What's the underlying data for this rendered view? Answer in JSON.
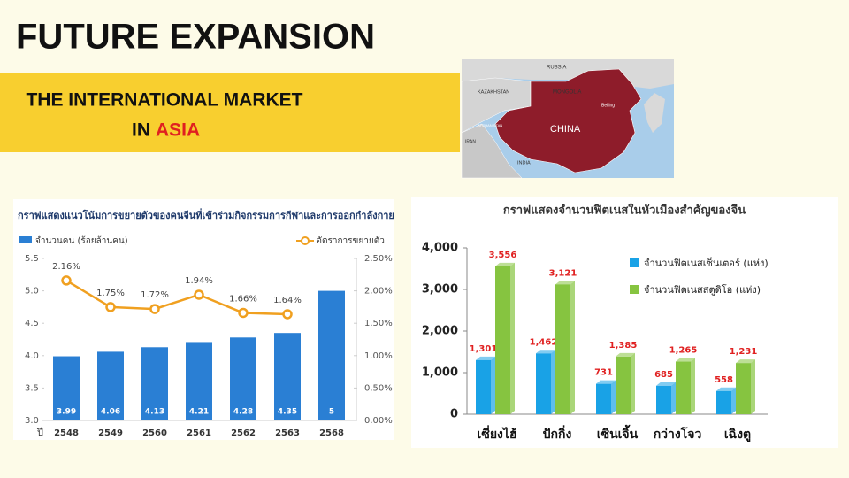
{
  "header": {
    "title": "FUTURE EXPANSION",
    "subtitle_line1": "THE INTERNATIONAL MARKET",
    "subtitle_line2": "IN",
    "subtitle_highlight": "ASIA"
  },
  "map": {
    "labels": [
      "RUSSIA",
      "KAZAKHSTAN",
      "MONGOLIA",
      "CHINA",
      "Beijing",
      "INDIA",
      "IRAN",
      "AFGHANISTAN"
    ]
  },
  "chart_data": [
    {
      "type": "combo",
      "title": "กราฟแสดงแนวโน้มการขยายตัวของคนจีนที่เข้าร่วมกิจกรรมการกีฬาและการออกกำลังกาย",
      "x_label": "ปี",
      "categories": [
        "2548",
        "2549",
        "2560",
        "2561",
        "2562",
        "2563",
        "2568"
      ],
      "series": [
        {
          "name": "จำนวนคน (ร้อยล้านคน)",
          "color": "#2a7fd4",
          "values": [
            3.99,
            4.06,
            4.13,
            4.21,
            4.28,
            4.35,
            5
          ]
        },
        {
          "name": "อัตราการขยายตัว",
          "color": "#f0a020",
          "axis": "y2",
          "values": [
            2.16,
            1.75,
            1.72,
            1.94,
            1.66,
            1.64,
            null
          ],
          "value_labels": [
            "2.16%",
            "1.75%",
            "1.72%",
            "1.94%",
            "1.66%",
            "1.64%",
            null
          ]
        }
      ],
      "ylim": [
        3.0,
        5.5
      ],
      "yticks": [
        {
          "value": 3.0,
          "label": "3.0"
        },
        3.5,
        {
          "value": 4.0,
          "label": "4.0"
        },
        4.5,
        {
          "value": 5.0,
          "label": "5.0"
        },
        5.5
      ],
      "y2lim": [
        0,
        2.5
      ],
      "y2ticks": [
        {
          "value": 0,
          "label": "0.00%"
        },
        {
          "value": 0.5,
          "label": "0.50%"
        },
        {
          "value": 1.0,
          "label": "1.00%"
        },
        {
          "value": 1.5,
          "label": "1.50%"
        },
        {
          "value": 2.0,
          "label": "2.00%"
        },
        {
          "value": 2.5,
          "label": "2.50%"
        }
      ],
      "grid": false
    },
    {
      "type": "bar",
      "title": "กราฟแสดงจำนวนฟิตเนสในหัวเมืองสำคัญของจีน",
      "categories": [
        "เซี่ยงไฮ้",
        "ปักกิ่ง",
        "เซินเจิ้น",
        "กว่างโจว",
        "เฉิงตู"
      ],
      "series": [
        {
          "name": "จำนวนฟิตเนสเซ็นเตอร์ (แห่ง)",
          "color": "#19a2e6",
          "values": [
            1301,
            1462,
            731,
            685,
            558
          ],
          "value_labels": [
            "1,301",
            "1,462",
            "731",
            "685",
            "558"
          ]
        },
        {
          "name": "จำนวนฟิตเนสสตูดิโอ (แห่ง)",
          "color": "#86c440",
          "values": [
            3556,
            3121,
            1385,
            1265,
            1231
          ],
          "value_labels": [
            "3,556",
            "3,121",
            "1,385",
            "1,265",
            "1,231"
          ]
        }
      ],
      "ylim": [
        0,
        4000
      ],
      "yticks": [
        0,
        {
          "value": 1000,
          "label": "1,000"
        },
        {
          "value": 2000,
          "label": "2,000"
        },
        {
          "value": 3000,
          "label": "3,000"
        },
        {
          "value": 4000,
          "label": "4,000"
        }
      ],
      "grid": false
    }
  ]
}
